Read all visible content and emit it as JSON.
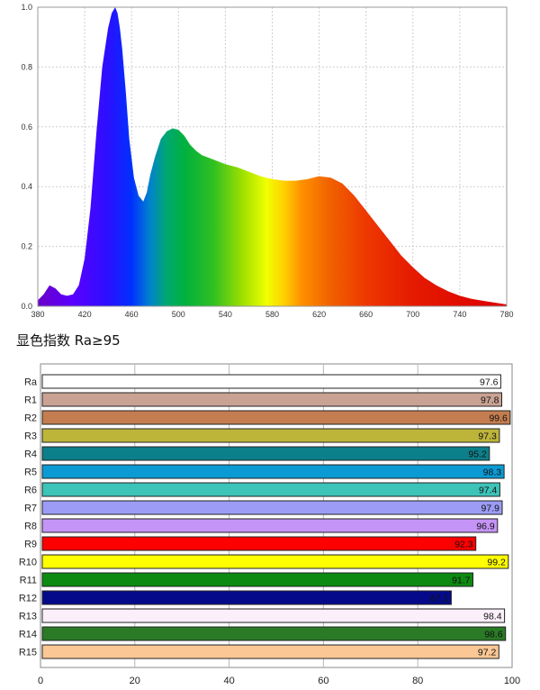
{
  "caption": "显色指数 Ra≥95",
  "chart_data": [
    {
      "type": "area",
      "colormap": "wavelength-rainbow",
      "xlim": [
        380,
        780
      ],
      "ylim": [
        0,
        1.0
      ],
      "grid": true,
      "x_ticks": [
        380,
        420,
        460,
        500,
        540,
        580,
        620,
        660,
        700,
        740,
        780
      ],
      "y_ticks": [
        0.0,
        0.2,
        0.4,
        0.6,
        0.8,
        1.0
      ],
      "x_tick_labels": [
        "380",
        "420",
        "460",
        "500",
        "540",
        "580",
        "620",
        "660",
        "700",
        "740",
        "780"
      ],
      "y_tick_labels": [
        "0.0",
        "0.2",
        "0.4",
        "0.6",
        "0.8",
        "1.0"
      ],
      "x": [
        380,
        385,
        390,
        395,
        400,
        405,
        410,
        415,
        420,
        425,
        430,
        435,
        440,
        443,
        446,
        448,
        450,
        452,
        455,
        458,
        462,
        466,
        470,
        473,
        476,
        480,
        485,
        490,
        495,
        500,
        505,
        510,
        515,
        520,
        530,
        540,
        550,
        560,
        570,
        580,
        590,
        600,
        610,
        620,
        630,
        640,
        650,
        660,
        670,
        680,
        690,
        700,
        710,
        720,
        730,
        740,
        750,
        760,
        770,
        780
      ],
      "y": [
        0.02,
        0.04,
        0.07,
        0.06,
        0.04,
        0.035,
        0.04,
        0.07,
        0.16,
        0.33,
        0.58,
        0.8,
        0.93,
        0.98,
        1.0,
        0.98,
        0.93,
        0.86,
        0.72,
        0.56,
        0.43,
        0.37,
        0.35,
        0.38,
        0.44,
        0.5,
        0.56,
        0.585,
        0.595,
        0.59,
        0.57,
        0.54,
        0.52,
        0.505,
        0.49,
        0.475,
        0.465,
        0.45,
        0.435,
        0.425,
        0.42,
        0.42,
        0.425,
        0.435,
        0.43,
        0.41,
        0.37,
        0.32,
        0.27,
        0.22,
        0.17,
        0.13,
        0.095,
        0.07,
        0.05,
        0.035,
        0.025,
        0.018,
        0.012,
        0.006
      ]
    },
    {
      "type": "bar",
      "orientation": "horizontal",
      "xlim": [
        0,
        100
      ],
      "x_ticks": [
        0,
        20,
        40,
        60,
        80,
        100
      ],
      "x_tick_labels": [
        "0",
        "20",
        "40",
        "60",
        "80",
        "100"
      ],
      "grid": true,
      "categories": [
        "Ra",
        "R1",
        "R2",
        "R3",
        "R4",
        "R5",
        "R6",
        "R7",
        "R8",
        "R9",
        "R10",
        "R11",
        "R12",
        "R13",
        "R14",
        "R15"
      ],
      "values": [
        97.6,
        97.8,
        99.6,
        97.3,
        95.2,
        98.3,
        97.4,
        97.9,
        96.9,
        92.3,
        99.2,
        91.7,
        87.1,
        98.4,
        98.6,
        97.2
      ],
      "value_labels": [
        "97.6",
        "97.8",
        "99.6",
        "97.3",
        "95.2",
        "98.3",
        "97.4",
        "97.9",
        "96.9",
        "92.3",
        "99.2",
        "91.7",
        "87.1",
        "98.4",
        "98.6",
        "97.2"
      ],
      "colors": [
        "#ffffff",
        "#c9a294",
        "#c47d50",
        "#bdb53a",
        "#0d7f8a",
        "#0b9ad3",
        "#3cc4b9",
        "#9c9cf6",
        "#c594f7",
        "#ff0000",
        "#ffff00",
        "#0d8a12",
        "#050a8a",
        "#fbeffa",
        "#2a7a26",
        "#fbc794"
      ]
    }
  ]
}
